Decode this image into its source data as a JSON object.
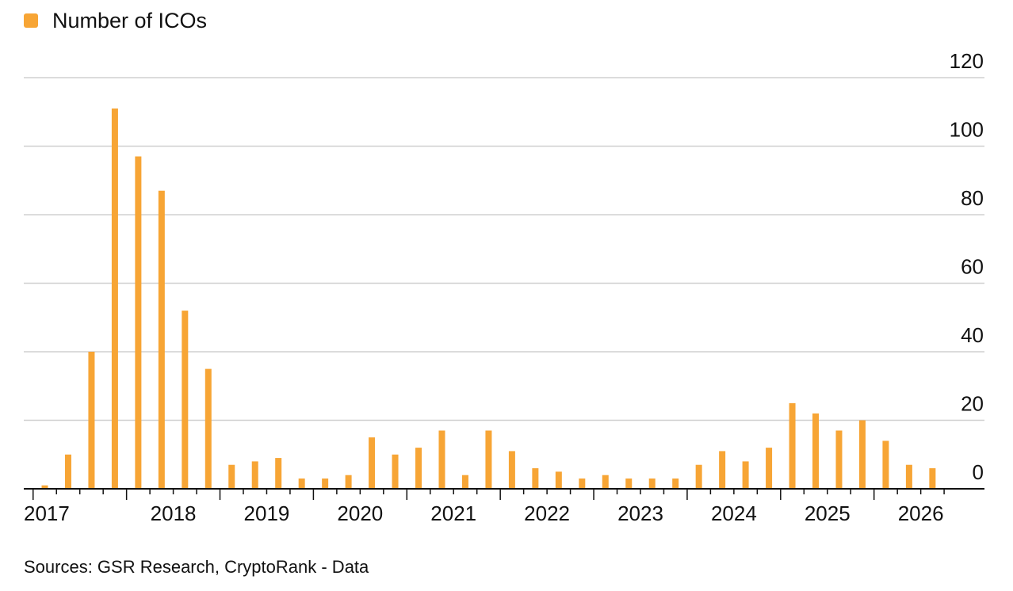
{
  "legend": {
    "label": "Number of ICOs",
    "color": "#F7A535"
  },
  "source": "Sources: GSR Research, CryptoRank - Data",
  "chart_data": {
    "type": "bar",
    "x_unit": "quarter",
    "categories": [
      "2017 Q1",
      "2017 Q2",
      "2017 Q3",
      "2017 Q4",
      "2018 Q1",
      "2018 Q2",
      "2018 Q3",
      "2018 Q4",
      "2019 Q1",
      "2019 Q2",
      "2019 Q3",
      "2019 Q4",
      "2020 Q1",
      "2020 Q2",
      "2020 Q3",
      "2020 Q4",
      "2021 Q1",
      "2021 Q2",
      "2021 Q3",
      "2021 Q4",
      "2022 Q1",
      "2022 Q2",
      "2022 Q3",
      "2022 Q4",
      "2023 Q1",
      "2023 Q2",
      "2023 Q3",
      "2023 Q4",
      "2024 Q1",
      "2024 Q2",
      "2024 Q3",
      "2024 Q4",
      "2025 Q1",
      "2025 Q2",
      "2025 Q3",
      "2025 Q4",
      "2026 Q1",
      "2026 Q2",
      "2026 Q3"
    ],
    "series": [
      {
        "name": "Number of ICOs",
        "color": "#F7A535",
        "values": [
          1,
          10,
          40,
          111,
          97,
          87,
          52,
          35,
          7,
          8,
          9,
          3,
          3,
          4,
          15,
          10,
          12,
          17,
          4,
          17,
          11,
          6,
          5,
          3,
          4,
          3,
          3,
          3,
          7,
          11,
          8,
          12,
          25,
          22,
          17,
          20,
          14,
          7,
          6
        ]
      }
    ],
    "x_tick_labels": [
      "2017",
      "2018",
      "2019",
      "2020",
      "2021",
      "2022",
      "2023",
      "2024",
      "2025",
      "2026"
    ],
    "y_tick_labels": [
      "0",
      "20",
      "40",
      "60",
      "80",
      "100",
      "120"
    ],
    "ylim": [
      0,
      120
    ],
    "y_axis_position": "right",
    "grid": "horizontal",
    "legend_position": "top-left",
    "title": "",
    "xlabel": "",
    "ylabel": ""
  }
}
